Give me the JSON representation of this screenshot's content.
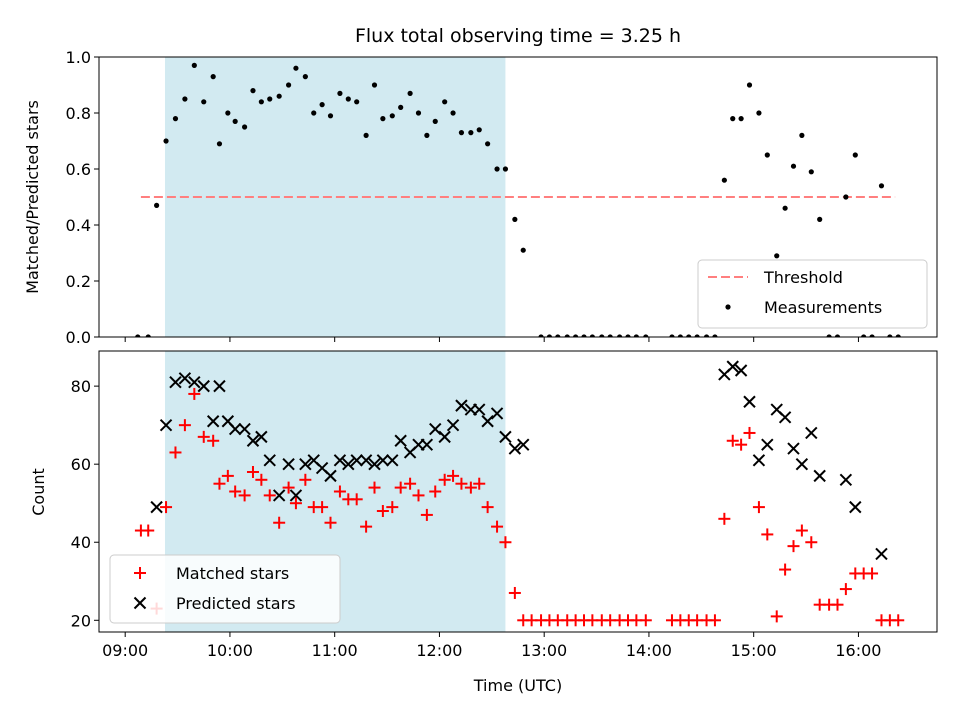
{
  "chart_data": {
    "type": "scatter",
    "title": "Flux total observing time = 3.25 h",
    "xlabel": "Time (UTC)",
    "x_ticks": [
      "09:00",
      "10:00",
      "11:00",
      "12:00",
      "13:00",
      "14:00",
      "15:00",
      "16:00"
    ],
    "x_range_hours": [
      8.75,
      16.75
    ],
    "shaded_region_hours": [
      9.38,
      12.63
    ],
    "colors": {
      "shade": "#add8e6",
      "threshold": "#ff7f7f",
      "measurements": "#000000",
      "matched": "#ff0000",
      "predicted": "#000000"
    },
    "panels": [
      {
        "ylabel": "Matched/Predicted stars",
        "ylim": [
          0,
          1.0
        ],
        "yticks": [
          "0.0",
          "0.2",
          "0.4",
          "0.6",
          "0.8",
          "1.0"
        ],
        "ytick_values": [
          0,
          0.2,
          0.4,
          0.6,
          0.8,
          1.0
        ],
        "legend_position": "lower-right",
        "threshold": {
          "name": "Threshold",
          "value": 0.5,
          "x_range": [
            9.15,
            16.35
          ]
        },
        "measurements": {
          "name": "Measurements",
          "points": [
            [
              9.12,
              0
            ],
            [
              9.22,
              0
            ],
            [
              9.3,
              0.47
            ],
            [
              9.39,
              0.7
            ],
            [
              9.48,
              0.78
            ],
            [
              9.57,
              0.85
            ],
            [
              9.66,
              0.97
            ],
            [
              9.75,
              0.84
            ],
            [
              9.84,
              0.93
            ],
            [
              9.9,
              0.69
            ],
            [
              9.98,
              0.8
            ],
            [
              10.05,
              0.77
            ],
            [
              10.14,
              0.75
            ],
            [
              10.22,
              0.88
            ],
            [
              10.3,
              0.84
            ],
            [
              10.38,
              0.85
            ],
            [
              10.47,
              0.86
            ],
            [
              10.56,
              0.9
            ],
            [
              10.63,
              0.96
            ],
            [
              10.72,
              0.93
            ],
            [
              10.8,
              0.8
            ],
            [
              10.88,
              0.83
            ],
            [
              10.96,
              0.79
            ],
            [
              11.05,
              0.87
            ],
            [
              11.13,
              0.85
            ],
            [
              11.21,
              0.84
            ],
            [
              11.3,
              0.72
            ],
            [
              11.38,
              0.9
            ],
            [
              11.46,
              0.78
            ],
            [
              11.55,
              0.79
            ],
            [
              11.63,
              0.82
            ],
            [
              11.72,
              0.87
            ],
            [
              11.8,
              0.8
            ],
            [
              11.88,
              0.72
            ],
            [
              11.96,
              0.77
            ],
            [
              12.05,
              0.84
            ],
            [
              12.13,
              0.8
            ],
            [
              12.21,
              0.73
            ],
            [
              12.3,
              0.73
            ],
            [
              12.38,
              0.74
            ],
            [
              12.46,
              0.69
            ],
            [
              12.55,
              0.6
            ],
            [
              12.63,
              0.6
            ],
            [
              12.72,
              0.42
            ],
            [
              12.8,
              0.31
            ],
            [
              12.97,
              0
            ],
            [
              13.05,
              0
            ],
            [
              13.13,
              0
            ],
            [
              13.22,
              0
            ],
            [
              13.3,
              0
            ],
            [
              13.38,
              0
            ],
            [
              13.46,
              0
            ],
            [
              13.55,
              0
            ],
            [
              13.63,
              0
            ],
            [
              13.72,
              0
            ],
            [
              13.8,
              0
            ],
            [
              13.88,
              0
            ],
            [
              13.97,
              0
            ],
            [
              14.22,
              0
            ],
            [
              14.3,
              0
            ],
            [
              14.38,
              0
            ],
            [
              14.46,
              0
            ],
            [
              14.55,
              0
            ],
            [
              14.63,
              0
            ],
            [
              14.72,
              0.56
            ],
            [
              14.8,
              0.78
            ],
            [
              14.88,
              0.78
            ],
            [
              14.96,
              0.9
            ],
            [
              15.05,
              0.8
            ],
            [
              15.13,
              0.65
            ],
            [
              15.22,
              0.29
            ],
            [
              15.3,
              0.46
            ],
            [
              15.38,
              0.61
            ],
            [
              15.46,
              0.72
            ],
            [
              15.55,
              0.59
            ],
            [
              15.63,
              0.42
            ],
            [
              15.72,
              0
            ],
            [
              15.8,
              0
            ],
            [
              15.88,
              0.5
            ],
            [
              15.97,
              0.65
            ],
            [
              16.05,
              0
            ],
            [
              16.13,
              0
            ],
            [
              16.22,
              0.54
            ],
            [
              16.3,
              0
            ],
            [
              16.38,
              0
            ]
          ]
        }
      },
      {
        "ylabel": "Count",
        "ylim": [
          17,
          89
        ],
        "yticks": [
          "20",
          "40",
          "60",
          "80"
        ],
        "ytick_values": [
          20,
          40,
          60,
          80
        ],
        "legend_position": "lower-left",
        "matched": {
          "name": "Matched stars",
          "points": [
            [
              9.15,
              43
            ],
            [
              9.22,
              43
            ],
            [
              9.3,
              23
            ],
            [
              9.39,
              49
            ],
            [
              9.48,
              63
            ],
            [
              9.57,
              70
            ],
            [
              9.66,
              78
            ],
            [
              9.75,
              67
            ],
            [
              9.84,
              66
            ],
            [
              9.9,
              55
            ],
            [
              9.98,
              57
            ],
            [
              10.05,
              53
            ],
            [
              10.14,
              52
            ],
            [
              10.22,
              58
            ],
            [
              10.3,
              56
            ],
            [
              10.38,
              52
            ],
            [
              10.47,
              45
            ],
            [
              10.56,
              54
            ],
            [
              10.63,
              50
            ],
            [
              10.72,
              56
            ],
            [
              10.8,
              49
            ],
            [
              10.88,
              49
            ],
            [
              10.96,
              45
            ],
            [
              11.05,
              53
            ],
            [
              11.13,
              51
            ],
            [
              11.21,
              51
            ],
            [
              11.3,
              44
            ],
            [
              11.38,
              54
            ],
            [
              11.46,
              48
            ],
            [
              11.55,
              49
            ],
            [
              11.63,
              54
            ],
            [
              11.72,
              55
            ],
            [
              11.8,
              52
            ],
            [
              11.88,
              47
            ],
            [
              11.96,
              53
            ],
            [
              12.05,
              56
            ],
            [
              12.13,
              57
            ],
            [
              12.21,
              55
            ],
            [
              12.3,
              54
            ],
            [
              12.38,
              55
            ],
            [
              12.46,
              49
            ],
            [
              12.55,
              44
            ],
            [
              12.63,
              40
            ],
            [
              12.72,
              27
            ],
            [
              12.8,
              20
            ],
            [
              12.88,
              20
            ],
            [
              12.97,
              20
            ],
            [
              13.05,
              20
            ],
            [
              13.13,
              20
            ],
            [
              13.22,
              20
            ],
            [
              13.3,
              20
            ],
            [
              13.38,
              20
            ],
            [
              13.46,
              20
            ],
            [
              13.55,
              20
            ],
            [
              13.63,
              20
            ],
            [
              13.72,
              20
            ],
            [
              13.8,
              20
            ],
            [
              13.88,
              20
            ],
            [
              13.97,
              20
            ],
            [
              14.22,
              20
            ],
            [
              14.3,
              20
            ],
            [
              14.38,
              20
            ],
            [
              14.46,
              20
            ],
            [
              14.55,
              20
            ],
            [
              14.63,
              20
            ],
            [
              14.72,
              46
            ],
            [
              14.8,
              66
            ],
            [
              14.88,
              65
            ],
            [
              14.96,
              68
            ],
            [
              15.05,
              49
            ],
            [
              15.13,
              42
            ],
            [
              15.22,
              21
            ],
            [
              15.3,
              33
            ],
            [
              15.38,
              39
            ],
            [
              15.46,
              43
            ],
            [
              15.55,
              40
            ],
            [
              15.63,
              24
            ],
            [
              15.72,
              24
            ],
            [
              15.8,
              24
            ],
            [
              15.88,
              28
            ],
            [
              15.97,
              32
            ],
            [
              16.05,
              32
            ],
            [
              16.13,
              32
            ],
            [
              16.22,
              20
            ],
            [
              16.3,
              20
            ],
            [
              16.38,
              20
            ]
          ]
        },
        "predicted": {
          "name": "Predicted stars",
          "points": [
            [
              9.3,
              49
            ],
            [
              9.39,
              70
            ],
            [
              9.48,
              81
            ],
            [
              9.57,
              82
            ],
            [
              9.66,
              81
            ],
            [
              9.75,
              80
            ],
            [
              9.84,
              71
            ],
            [
              9.9,
              80
            ],
            [
              9.98,
              71
            ],
            [
              10.05,
              69
            ],
            [
              10.14,
              69
            ],
            [
              10.22,
              66
            ],
            [
              10.3,
              67
            ],
            [
              10.38,
              61
            ],
            [
              10.47,
              52
            ],
            [
              10.56,
              60
            ],
            [
              10.63,
              52
            ],
            [
              10.72,
              60
            ],
            [
              10.8,
              61
            ],
            [
              10.88,
              59
            ],
            [
              10.96,
              57
            ],
            [
              11.05,
              61
            ],
            [
              11.13,
              60
            ],
            [
              11.21,
              61
            ],
            [
              11.3,
              61
            ],
            [
              11.38,
              60
            ],
            [
              11.46,
              61
            ],
            [
              11.55,
              61
            ],
            [
              11.63,
              66
            ],
            [
              11.72,
              63
            ],
            [
              11.8,
              65
            ],
            [
              11.88,
              65
            ],
            [
              11.96,
              69
            ],
            [
              12.05,
              67
            ],
            [
              12.13,
              70
            ],
            [
              12.21,
              75
            ],
            [
              12.3,
              74
            ],
            [
              12.38,
              74
            ],
            [
              12.46,
              71
            ],
            [
              12.55,
              73
            ],
            [
              12.63,
              67
            ],
            [
              12.72,
              64
            ],
            [
              12.8,
              65
            ],
            [
              14.72,
              83
            ],
            [
              14.8,
              85
            ],
            [
              14.88,
              84
            ],
            [
              14.96,
              76
            ],
            [
              15.05,
              61
            ],
            [
              15.13,
              65
            ],
            [
              15.22,
              74
            ],
            [
              15.3,
              72
            ],
            [
              15.38,
              64
            ],
            [
              15.46,
              60
            ],
            [
              15.55,
              68
            ],
            [
              15.63,
              57
            ],
            [
              15.88,
              56
            ],
            [
              15.97,
              49
            ],
            [
              16.22,
              37
            ]
          ]
        }
      }
    ]
  }
}
